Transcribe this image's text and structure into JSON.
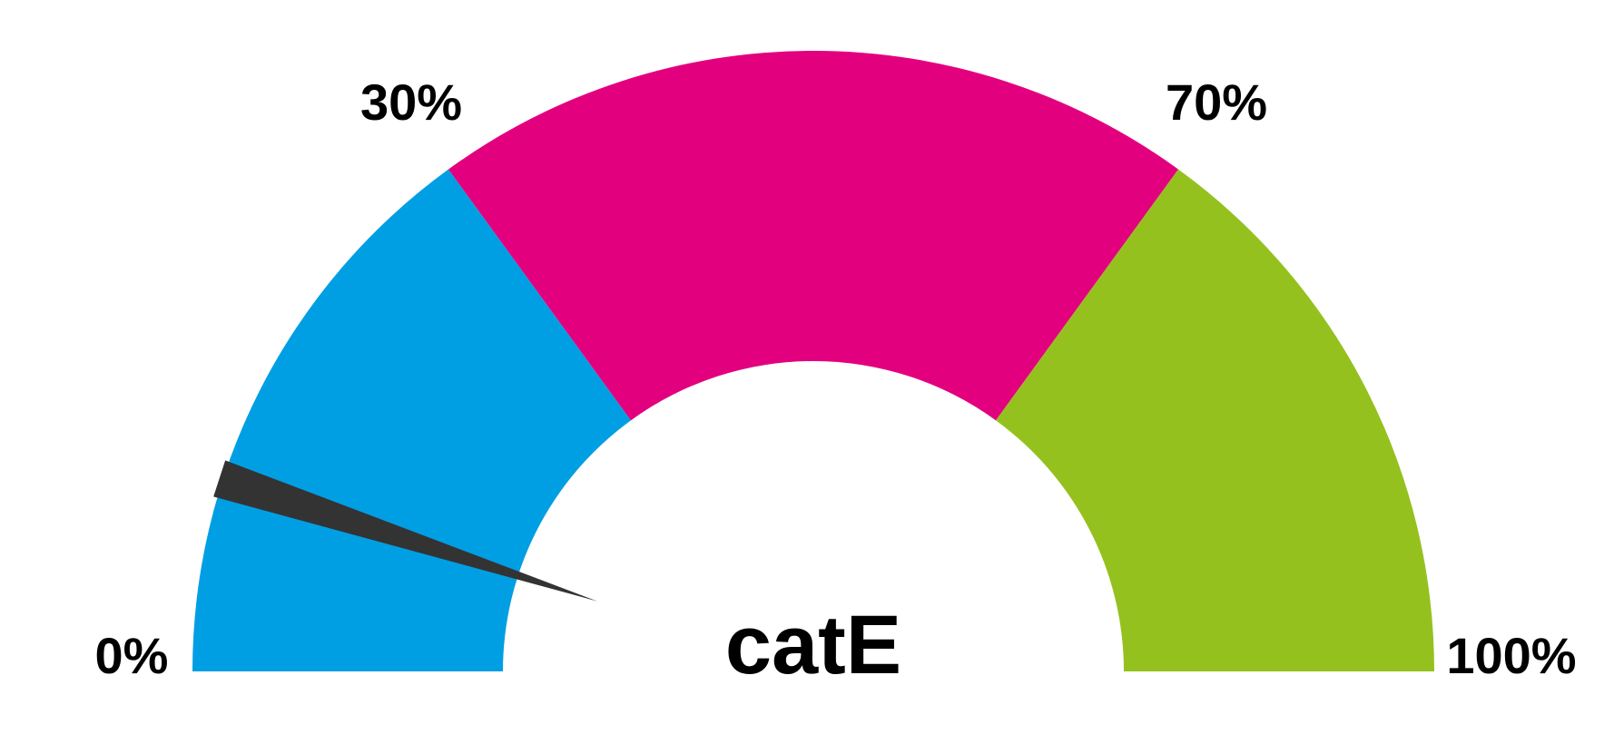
{
  "chart_data": {
    "type": "gauge",
    "label": "catE",
    "value": 10,
    "range": [
      0,
      100
    ],
    "unit": "%",
    "bands": [
      {
        "from": 0,
        "to": 30,
        "color": "#009FE3"
      },
      {
        "from": 30,
        "to": 70,
        "color": "#E3007E"
      },
      {
        "from": 70,
        "to": 100,
        "color": "#95C11F"
      }
    ],
    "ticks": [
      {
        "value": 0,
        "label": "0%"
      },
      {
        "value": 30,
        "label": "30%"
      },
      {
        "value": 70,
        "label": "70%"
      },
      {
        "value": 100,
        "label": "100%"
      }
    ],
    "needle_color": "#333333"
  }
}
